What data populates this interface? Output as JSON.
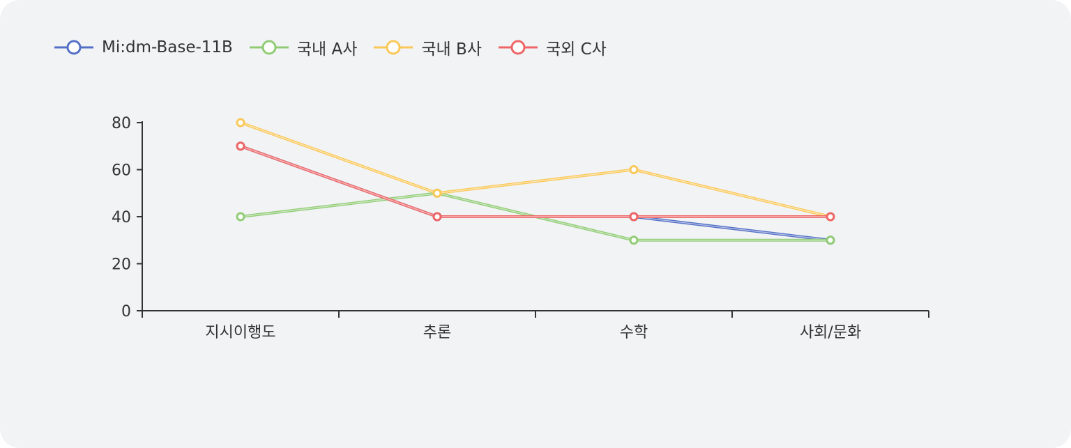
{
  "chart_data": {
    "type": "line",
    "categories": [
      "지시이행도",
      "추론",
      "수학",
      "사회/문화"
    ],
    "series": [
      {
        "name": "Mi:dm-Base-11B",
        "color": "#5470c6",
        "values": [
          70,
          40,
          40,
          30
        ]
      },
      {
        "name": "국내 A사",
        "color": "#91cc75",
        "values": [
          40,
          50,
          30,
          30
        ]
      },
      {
        "name": "국내 B사",
        "color": "#fac858",
        "values": [
          80,
          50,
          60,
          40
        ]
      },
      {
        "name": "국외 C사",
        "color": "#ee6666",
        "values": [
          70,
          40,
          40,
          40
        ]
      }
    ],
    "yticks": [
      0,
      20,
      40,
      60,
      80
    ],
    "ylim": [
      0,
      80
    ],
    "legend_position": "top-left",
    "grid": false,
    "xlabel": "",
    "ylabel": ""
  }
}
